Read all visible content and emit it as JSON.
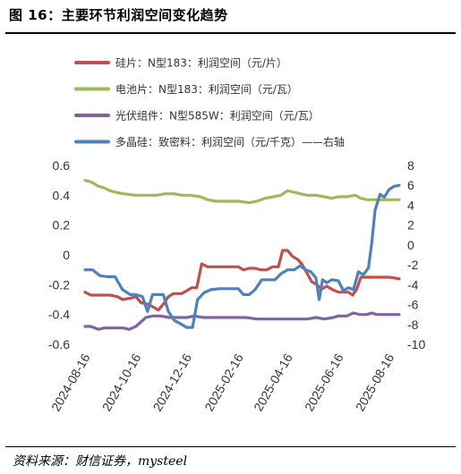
{
  "figure": {
    "title": "图 16：主要环节利润空间变化趋势",
    "source": "资料来源：财信证券，mysteel"
  },
  "chart_data": {
    "type": "line",
    "x_tick_labels": [
      "2024-08-16",
      "2024-10-16",
      "2024-12-16",
      "2025-02-16",
      "2025-04-16",
      "2025-06-16",
      "2025-08-16"
    ],
    "x_range": [
      "2024-08-16",
      "2025-08-28"
    ],
    "left_axis": {
      "ylim": [
        -0.6,
        0.6
      ],
      "ticks": [
        0.6,
        0.4,
        0.2,
        0,
        -0.2,
        -0.4,
        -0.6
      ],
      "tick_labels": [
        "0.6",
        "0.4",
        "0.2",
        "0",
        "-0.2",
        "-0.4",
        "-0.6"
      ]
    },
    "right_axis": {
      "ylim": [
        -10,
        8
      ],
      "ticks": [
        8,
        6,
        4,
        2,
        0,
        -2,
        -4,
        -6,
        -8,
        -10
      ],
      "tick_labels": [
        "8",
        "6",
        "4",
        "2",
        "0",
        "-2",
        "-4",
        "-6",
        "-8",
        "-10"
      ]
    },
    "grid": false,
    "legend_position": "top",
    "series": [
      {
        "name": "硅片：N型183：利润空间（元/片）",
        "color": "#c0504d",
        "axis": "left",
        "points": [
          [
            "2024-08-16",
            -0.25
          ],
          [
            "2024-08-23",
            -0.27
          ],
          [
            "2024-09-01",
            -0.27
          ],
          [
            "2024-09-15",
            -0.27
          ],
          [
            "2024-09-24",
            -0.28
          ],
          [
            "2024-09-30",
            -0.3
          ],
          [
            "2024-10-10",
            -0.29
          ],
          [
            "2024-10-16",
            -0.28
          ],
          [
            "2024-10-22",
            -0.32
          ],
          [
            "2024-10-30",
            -0.33
          ],
          [
            "2024-11-06",
            -0.35
          ],
          [
            "2024-11-12",
            -0.37
          ],
          [
            "2024-11-18",
            -0.33
          ],
          [
            "2024-11-24",
            -0.28
          ],
          [
            "2024-11-30",
            -0.26
          ],
          [
            "2024-12-10",
            -0.26
          ],
          [
            "2024-12-16",
            -0.24
          ],
          [
            "2024-12-22",
            -0.22
          ],
          [
            "2024-12-28",
            -0.22
          ],
          [
            "2025-01-03",
            -0.06
          ],
          [
            "2025-01-10",
            -0.08
          ],
          [
            "2025-01-20",
            -0.08
          ],
          [
            "2025-02-01",
            -0.08
          ],
          [
            "2025-02-16",
            -0.08
          ],
          [
            "2025-02-22",
            -0.1
          ],
          [
            "2025-03-01",
            -0.09
          ],
          [
            "2025-03-08",
            -0.09
          ],
          [
            "2025-03-15",
            -0.1
          ],
          [
            "2025-03-22",
            -0.1
          ],
          [
            "2025-03-29",
            -0.08
          ],
          [
            "2025-04-05",
            -0.08
          ],
          [
            "2025-04-10",
            0.03
          ],
          [
            "2025-04-16",
            0.03
          ],
          [
            "2025-04-22",
            -0.01
          ],
          [
            "2025-04-28",
            -0.03
          ],
          [
            "2025-05-03",
            -0.06
          ],
          [
            "2025-05-09",
            -0.12
          ],
          [
            "2025-05-15",
            -0.18
          ],
          [
            "2025-05-21",
            -0.2
          ],
          [
            "2025-05-27",
            -0.23
          ],
          [
            "2025-06-02",
            -0.21
          ],
          [
            "2025-06-08",
            -0.23
          ],
          [
            "2025-06-16",
            -0.25
          ],
          [
            "2025-06-22",
            -0.25
          ],
          [
            "2025-06-28",
            -0.25
          ],
          [
            "2025-07-03",
            -0.27
          ],
          [
            "2025-07-08",
            -0.23
          ],
          [
            "2025-07-13",
            -0.15
          ],
          [
            "2025-07-20",
            -0.15
          ],
          [
            "2025-07-30",
            -0.15
          ],
          [
            "2025-08-08",
            -0.15
          ],
          [
            "2025-08-16",
            -0.15
          ],
          [
            "2025-08-28",
            -0.16
          ]
        ]
      },
      {
        "name": "电池片：N型183：利润空间（元/瓦）",
        "color": "#9bbb59",
        "axis": "left",
        "points": [
          [
            "2024-08-16",
            0.5
          ],
          [
            "2024-08-23",
            0.49
          ],
          [
            "2024-09-01",
            0.46
          ],
          [
            "2024-09-08",
            0.45
          ],
          [
            "2024-09-15",
            0.43
          ],
          [
            "2024-09-22",
            0.42
          ],
          [
            "2024-10-01",
            0.41
          ],
          [
            "2024-10-16",
            0.4
          ],
          [
            "2024-10-22",
            0.4
          ],
          [
            "2024-11-01",
            0.4
          ],
          [
            "2024-11-10",
            0.4
          ],
          [
            "2024-11-20",
            0.41
          ],
          [
            "2024-12-01",
            0.41
          ],
          [
            "2024-12-10",
            0.4
          ],
          [
            "2024-12-20",
            0.4
          ],
          [
            "2025-01-01",
            0.39
          ],
          [
            "2025-01-10",
            0.37
          ],
          [
            "2025-01-20",
            0.36
          ],
          [
            "2025-02-01",
            0.36
          ],
          [
            "2025-02-16",
            0.36
          ],
          [
            "2025-03-01",
            0.35
          ],
          [
            "2025-03-10",
            0.36
          ],
          [
            "2025-03-20",
            0.38
          ],
          [
            "2025-03-30",
            0.39
          ],
          [
            "2025-04-08",
            0.4
          ],
          [
            "2025-04-16",
            0.43
          ],
          [
            "2025-04-24",
            0.42
          ],
          [
            "2025-05-01",
            0.41
          ],
          [
            "2025-05-10",
            0.4
          ],
          [
            "2025-05-20",
            0.4
          ],
          [
            "2025-05-30",
            0.39
          ],
          [
            "2025-06-08",
            0.38
          ],
          [
            "2025-06-16",
            0.39
          ],
          [
            "2025-06-26",
            0.39
          ],
          [
            "2025-07-06",
            0.4
          ],
          [
            "2025-07-13",
            0.38
          ],
          [
            "2025-07-20",
            0.37
          ],
          [
            "2025-08-01",
            0.37
          ],
          [
            "2025-08-16",
            0.37
          ],
          [
            "2025-08-28",
            0.37
          ]
        ]
      },
      {
        "name": "光伏组件：N型585W：利润空间（元/瓦）",
        "color": "#8064a2",
        "axis": "left",
        "points": [
          [
            "2024-08-16",
            -0.48
          ],
          [
            "2024-08-23",
            -0.48
          ],
          [
            "2024-09-01",
            -0.5
          ],
          [
            "2024-09-08",
            -0.49
          ],
          [
            "2024-09-20",
            -0.49
          ],
          [
            "2024-10-01",
            -0.49
          ],
          [
            "2024-10-08",
            -0.5
          ],
          [
            "2024-10-16",
            -0.48
          ],
          [
            "2024-10-22",
            -0.45
          ],
          [
            "2024-10-28",
            -0.42
          ],
          [
            "2024-11-05",
            -0.41
          ],
          [
            "2024-11-15",
            -0.41
          ],
          [
            "2024-11-25",
            -0.42
          ],
          [
            "2024-12-05",
            -0.42
          ],
          [
            "2024-12-16",
            -0.42
          ],
          [
            "2024-12-25",
            -0.41
          ],
          [
            "2025-01-05",
            -0.42
          ],
          [
            "2025-01-15",
            -0.42
          ],
          [
            "2025-01-25",
            -0.42
          ],
          [
            "2025-02-05",
            -0.42
          ],
          [
            "2025-02-16",
            -0.42
          ],
          [
            "2025-02-25",
            -0.42
          ],
          [
            "2025-03-10",
            -0.43
          ],
          [
            "2025-03-20",
            -0.43
          ],
          [
            "2025-04-01",
            -0.43
          ],
          [
            "2025-04-16",
            -0.43
          ],
          [
            "2025-04-28",
            -0.43
          ],
          [
            "2025-05-10",
            -0.43
          ],
          [
            "2025-05-20",
            -0.42
          ],
          [
            "2025-05-30",
            -0.43
          ],
          [
            "2025-06-10",
            -0.42
          ],
          [
            "2025-06-16",
            -0.41
          ],
          [
            "2025-06-26",
            -0.41
          ],
          [
            "2025-07-04",
            -0.39
          ],
          [
            "2025-07-12",
            -0.4
          ],
          [
            "2025-07-20",
            -0.4
          ],
          [
            "2025-07-26",
            -0.39
          ],
          [
            "2025-08-01",
            -0.4
          ],
          [
            "2025-08-10",
            -0.4
          ],
          [
            "2025-08-16",
            -0.4
          ],
          [
            "2025-08-28",
            -0.4
          ]
        ]
      },
      {
        "name": "多晶硅：致密料：利润空间（元/千克）——右轴",
        "color": "#4f81bd",
        "axis": "right",
        "points": [
          [
            "2024-08-16",
            -2.5
          ],
          [
            "2024-08-25",
            -2.5
          ],
          [
            "2024-09-03",
            -3.1
          ],
          [
            "2024-09-12",
            -3.2
          ],
          [
            "2024-09-21",
            -3.2
          ],
          [
            "2024-09-30",
            -4.5
          ],
          [
            "2024-10-09",
            -5.0
          ],
          [
            "2024-10-16",
            -5.0
          ],
          [
            "2024-10-24",
            -5.2
          ],
          [
            "2024-10-30",
            -6.7
          ],
          [
            "2024-11-05",
            -5.0
          ],
          [
            "2024-11-12",
            -5.0
          ],
          [
            "2024-11-18",
            -5.0
          ],
          [
            "2024-11-24",
            -6.7
          ],
          [
            "2024-12-01",
            -7.6
          ],
          [
            "2024-12-08",
            -7.9
          ],
          [
            "2024-12-16",
            -8.3
          ],
          [
            "2024-12-23",
            -8.3
          ],
          [
            "2024-12-29",
            -5.5
          ],
          [
            "2025-01-06",
            -4.8
          ],
          [
            "2025-01-14",
            -4.5
          ],
          [
            "2025-01-24",
            -4.4
          ],
          [
            "2025-02-03",
            -4.4
          ],
          [
            "2025-02-16",
            -4.4
          ],
          [
            "2025-02-22",
            -5.0
          ],
          [
            "2025-03-01",
            -5.0
          ],
          [
            "2025-03-08",
            -4.5
          ],
          [
            "2025-03-16",
            -3.5
          ],
          [
            "2025-03-24",
            -3.5
          ],
          [
            "2025-04-01",
            -3.5
          ],
          [
            "2025-04-08",
            -2.9
          ],
          [
            "2025-04-16",
            -2.5
          ],
          [
            "2025-04-24",
            -2.5
          ],
          [
            "2025-05-01",
            -2.1
          ],
          [
            "2025-05-08",
            -2.5
          ],
          [
            "2025-05-14",
            -2.7
          ],
          [
            "2025-05-20",
            -3.3
          ],
          [
            "2025-05-24",
            -5.5
          ],
          [
            "2025-05-28",
            -3.5
          ],
          [
            "2025-06-02",
            -3.8
          ],
          [
            "2025-06-08",
            -3.5
          ],
          [
            "2025-06-16",
            -3.6
          ],
          [
            "2025-06-22",
            -4.6
          ],
          [
            "2025-06-28",
            -4.3
          ],
          [
            "2025-07-04",
            -4.5
          ],
          [
            "2025-07-10",
            -2.7
          ],
          [
            "2025-07-16",
            -3.0
          ],
          [
            "2025-07-22",
            -2.3
          ],
          [
            "2025-07-26",
            0.2
          ],
          [
            "2025-07-30",
            3.5
          ],
          [
            "2025-08-05",
            5.1
          ],
          [
            "2025-08-10",
            4.8
          ],
          [
            "2025-08-16",
            5.6
          ],
          [
            "2025-08-22",
            5.9
          ],
          [
            "2025-08-28",
            6.0
          ]
        ]
      }
    ]
  }
}
